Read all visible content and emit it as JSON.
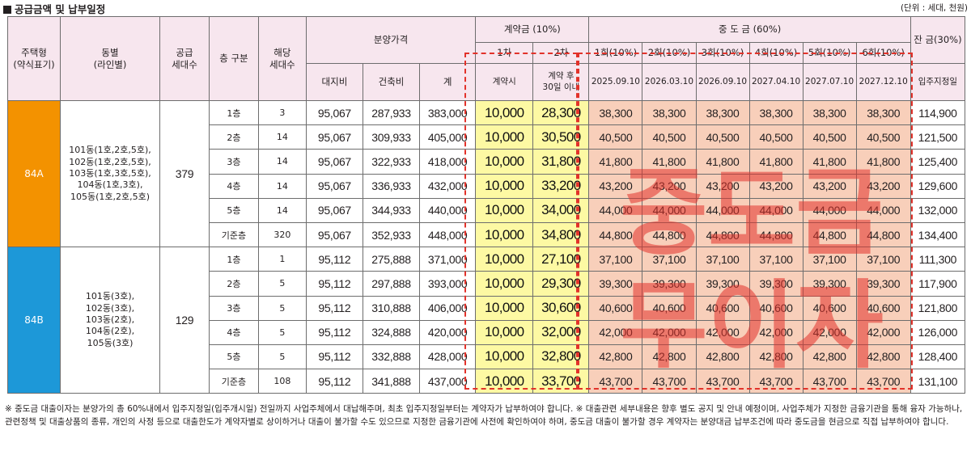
{
  "title": "공급금액 및 납부일정",
  "unit": "(단위 : 세대, 천원)",
  "headers": {
    "type": [
      "주택형",
      "(약식표기)"
    ],
    "dong": [
      "동별",
      "(라인별)"
    ],
    "supply": [
      "공급",
      "세대수"
    ],
    "floor": "층 구분",
    "units": [
      "해당",
      "세대수"
    ],
    "price_group": "분양가격",
    "land": "대지비",
    "building": "건축비",
    "total": "계",
    "contract_group": "계약금 (10%)",
    "contract_1": "1차",
    "contract_2": "2차",
    "contract_1_when": "계약시",
    "contract_2_when": [
      "계약 후",
      "30일 이내"
    ],
    "mid_group": "중 도 금 (60%)",
    "mid_rounds": [
      "1회(10%)",
      "2회(10%)",
      "3회(10%)",
      "4회(10%)",
      "5회(10%)",
      "6회(10%)"
    ],
    "mid_dates": [
      "2025.09.10",
      "2026.03.10",
      "2026.09.10",
      "2027.04.10",
      "2027.07.10",
      "2027.12.10"
    ],
    "balance_group": "잔 금(30%)",
    "balance_when": "입주지정일"
  },
  "groups": [
    {
      "type": "84A",
      "color": "#f39200",
      "lines": [
        "101동(1호,2호,5호),",
        "102동(1호,2호,5호),",
        "103동(1호,3호,5호),",
        "104동(1호,3호),",
        "105동(1호,2호,5호)"
      ],
      "supply": "379",
      "rows": [
        {
          "floor": "1층",
          "units": "3",
          "land": "95,067",
          "building": "287,933",
          "total": "383,000",
          "c1": "10,000",
          "c2": "28,300",
          "mid": [
            "38,300",
            "38,300",
            "38,300",
            "38,300",
            "38,300",
            "38,300"
          ],
          "balance": "114,900"
        },
        {
          "floor": "2층",
          "units": "14",
          "land": "95,067",
          "building": "309,933",
          "total": "405,000",
          "c1": "10,000",
          "c2": "30,500",
          "mid": [
            "40,500",
            "40,500",
            "40,500",
            "40,500",
            "40,500",
            "40,500"
          ],
          "balance": "121,500"
        },
        {
          "floor": "3층",
          "units": "14",
          "land": "95,067",
          "building": "322,933",
          "total": "418,000",
          "c1": "10,000",
          "c2": "31,800",
          "mid": [
            "41,800",
            "41,800",
            "41,800",
            "41,800",
            "41,800",
            "41,800"
          ],
          "balance": "125,400"
        },
        {
          "floor": "4층",
          "units": "14",
          "land": "95,067",
          "building": "336,933",
          "total": "432,000",
          "c1": "10,000",
          "c2": "33,200",
          "mid": [
            "43,200",
            "43,200",
            "43,200",
            "43,200",
            "43,200",
            "43,200"
          ],
          "balance": "129,600"
        },
        {
          "floor": "5층",
          "units": "14",
          "land": "95,067",
          "building": "344,933",
          "total": "440,000",
          "c1": "10,000",
          "c2": "34,000",
          "mid": [
            "44,000",
            "44,000",
            "44,000",
            "44,000",
            "44,000",
            "44,000"
          ],
          "balance": "132,000"
        },
        {
          "floor": "기준층",
          "units": "320",
          "land": "95,067",
          "building": "352,933",
          "total": "448,000",
          "c1": "10,000",
          "c2": "34,800",
          "mid": [
            "44,800",
            "44,800",
            "44,800",
            "44,800",
            "44,800",
            "44,800"
          ],
          "balance": "134,400"
        }
      ]
    },
    {
      "type": "84B",
      "color": "#1d98d8",
      "lines": [
        "101동(3호),",
        "102동(3호),",
        "103동(2호),",
        "104동(2호),",
        "105동(3호)"
      ],
      "supply": "129",
      "rows": [
        {
          "floor": "1층",
          "units": "1",
          "land": "95,112",
          "building": "275,888",
          "total": "371,000",
          "c1": "10,000",
          "c2": "27,100",
          "mid": [
            "37,100",
            "37,100",
            "37,100",
            "37,100",
            "37,100",
            "37,100"
          ],
          "balance": "111,300"
        },
        {
          "floor": "2층",
          "units": "5",
          "land": "95,112",
          "building": "297,888",
          "total": "393,000",
          "c1": "10,000",
          "c2": "29,300",
          "mid": [
            "39,300",
            "39,300",
            "39,300",
            "39,300",
            "39,300",
            "39,300"
          ],
          "balance": "117,900"
        },
        {
          "floor": "3층",
          "units": "5",
          "land": "95,112",
          "building": "310,888",
          "total": "406,000",
          "c1": "10,000",
          "c2": "30,600",
          "mid": [
            "40,600",
            "40,600",
            "40,600",
            "40,600",
            "40,600",
            "40,600"
          ],
          "balance": "121,800"
        },
        {
          "floor": "4층",
          "units": "5",
          "land": "95,112",
          "building": "324,888",
          "total": "420,000",
          "c1": "10,000",
          "c2": "32,000",
          "mid": [
            "42,000",
            "42,000",
            "42,000",
            "42,000",
            "42,000",
            "42,000"
          ],
          "balance": "126,000"
        },
        {
          "floor": "5층",
          "units": "5",
          "land": "95,112",
          "building": "332,888",
          "total": "428,000",
          "c1": "10,000",
          "c2": "32,800",
          "mid": [
            "42,800",
            "42,800",
            "42,800",
            "42,800",
            "42,800",
            "42,800"
          ],
          "balance": "128,400"
        },
        {
          "floor": "기준층",
          "units": "108",
          "land": "95,112",
          "building": "341,888",
          "total": "437,000",
          "c1": "10,000",
          "c2": "33,700",
          "mid": [
            "43,700",
            "43,700",
            "43,700",
            "43,700",
            "43,700",
            "43,700"
          ],
          "balance": "131,100"
        }
      ]
    }
  ],
  "watermark": [
    "중도금",
    "무이자"
  ],
  "colors": {
    "header_bg": "#f7e6ee",
    "contract_bg": "#fdf9a3",
    "mid_bg": "#f8cfba",
    "dash": "#e2322a",
    "watermark": "#e2322a"
  },
  "footnote": "※ 중도금 대출이자는 분양가의 총 60%내에서 입주지정일(입주개시일) 전일까지 사업주체에서 대납해주며, 최초 입주지정일부터는 계약자가 납부하여야 합니다. ※ 대출관련 세부내용은 향후 별도 공지 및 안내 예정이며, 사업주체가 지정한 금융기관을 통해 융자 가능하나, 관련정책 및 대출상품의 종류, 개인의 사정 등으로 대출한도가 계약자별로 상이하거나 대출이 불가할 수도 있으므로 지정한 금융기관에 사전에 확인하여야 하며, 중도금 대출이 불가할 경우 계약자는 분양대금 납부조건에 따라 중도금을 현금으로 직접 납부하여야 합니다."
}
